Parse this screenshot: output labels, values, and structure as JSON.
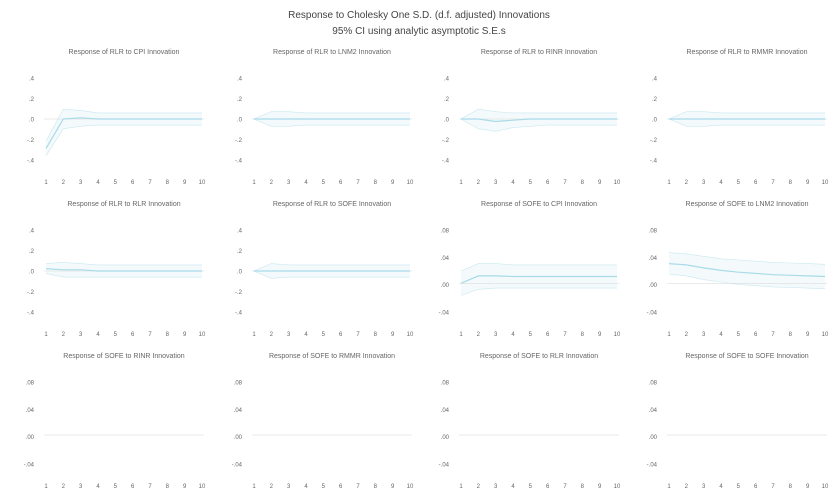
{
  "figure": {
    "title": "Response to Cholesky One S.D. (d.f. adjusted) Innovations",
    "subtitle": "95% CI using analytic asymptotic S.E.s"
  },
  "colors": {
    "line": "#a9dbe8",
    "band": "#f4fafc",
    "zero": "#d6d6d6",
    "text": "#666666"
  },
  "chart_data": [
    {
      "type": "line",
      "title": "Response of RLR to CPI Innovation",
      "x": [
        1,
        2,
        3,
        4,
        5,
        6,
        7,
        8,
        9,
        10
      ],
      "x_ticks": [
        "1",
        "2",
        "3",
        "4",
        "5",
        "6",
        "7",
        "8",
        "9",
        "10"
      ],
      "y_ticks": [
        ".4",
        ".2",
        ".0",
        "-.2",
        "-.4"
      ],
      "ylim": [
        -0.4,
        0.4
      ],
      "series": [
        {
          "values": [
            -0.24,
            0.0,
            0.01,
            0.0,
            0.0,
            0.0,
            0.0,
            0.0,
            0.0,
            0.0
          ]
        }
      ],
      "band_lower": [
        -0.3,
        -0.08,
        -0.06,
        -0.05,
        -0.05,
        -0.05,
        -0.05,
        -0.05,
        -0.05,
        -0.05
      ],
      "band_upper": [
        -0.18,
        0.08,
        0.07,
        0.05,
        0.05,
        0.05,
        0.05,
        0.05,
        0.05,
        0.05
      ]
    },
    {
      "type": "line",
      "title": "Response of RLR to LNM2 Innovation",
      "x": [
        1,
        2,
        3,
        4,
        5,
        6,
        7,
        8,
        9,
        10
      ],
      "x_ticks": [
        "1",
        "2",
        "3",
        "4",
        "5",
        "6",
        "7",
        "8",
        "9",
        "10"
      ],
      "y_ticks": [
        ".4",
        ".2",
        ".0",
        "-.2",
        "-.4"
      ],
      "ylim": [
        -0.4,
        0.4
      ],
      "series": [
        {
          "values": [
            0,
            0.0,
            0.0,
            0.0,
            0.0,
            0.0,
            0.0,
            0.0,
            0.0,
            0.0
          ]
        }
      ],
      "band_lower": [
        0,
        -0.06,
        -0.06,
        -0.05,
        -0.05,
        -0.05,
        -0.05,
        -0.05,
        -0.05,
        -0.05
      ],
      "band_upper": [
        0,
        0.06,
        0.06,
        0.05,
        0.05,
        0.05,
        0.05,
        0.05,
        0.05,
        0.05
      ]
    },
    {
      "type": "line",
      "title": "Response of RLR to RINR Innovation",
      "x": [
        1,
        2,
        3,
        4,
        5,
        6,
        7,
        8,
        9,
        10
      ],
      "x_ticks": [
        "1",
        "2",
        "3",
        "4",
        "5",
        "6",
        "7",
        "8",
        "9",
        "10"
      ],
      "y_ticks": [
        ".4",
        ".2",
        ".0",
        "-.2",
        "-.4"
      ],
      "ylim": [
        -0.4,
        0.4
      ],
      "series": [
        {
          "values": [
            0,
            0.0,
            -0.02,
            -0.01,
            0.0,
            0.0,
            0.0,
            0.0,
            0.0,
            0.0
          ]
        }
      ],
      "band_lower": [
        0,
        -0.08,
        -0.1,
        -0.07,
        -0.06,
        -0.05,
        -0.05,
        -0.05,
        -0.05,
        -0.05
      ],
      "band_upper": [
        0,
        0.08,
        0.06,
        0.05,
        0.05,
        0.05,
        0.05,
        0.05,
        0.05,
        0.05
      ]
    },
    {
      "type": "line",
      "title": "Response of RLR to RMMR Innovation",
      "x": [
        1,
        2,
        3,
        4,
        5,
        6,
        7,
        8,
        9,
        10
      ],
      "x_ticks": [
        "1",
        "2",
        "3",
        "4",
        "5",
        "6",
        "7",
        "8",
        "9",
        "10"
      ],
      "y_ticks": [
        ".4",
        ".2",
        ".0",
        "-.2",
        "-.4"
      ],
      "ylim": [
        -0.4,
        0.4
      ],
      "series": [
        {
          "values": [
            0,
            0.0,
            0.0,
            0.0,
            0.0,
            0.0,
            0.0,
            0.0,
            0.0,
            0.0
          ]
        }
      ],
      "band_lower": [
        0,
        -0.06,
        -0.06,
        -0.05,
        -0.05,
        -0.05,
        -0.05,
        -0.05,
        -0.05,
        -0.05
      ],
      "band_upper": [
        0,
        0.06,
        0.06,
        0.05,
        0.05,
        0.05,
        0.05,
        0.05,
        0.05,
        0.05
      ]
    },
    {
      "type": "line",
      "title": "Response of RLR to RLR Innovation",
      "x": [
        1,
        2,
        3,
        4,
        5,
        6,
        7,
        8,
        9,
        10
      ],
      "x_ticks": [
        "1",
        "2",
        "3",
        "4",
        "5",
        "6",
        "7",
        "8",
        "9",
        "10"
      ],
      "y_ticks": [
        ".4",
        ".2",
        ".0",
        "-.2",
        "-.4"
      ],
      "ylim": [
        -0.4,
        0.4
      ],
      "series": [
        {
          "values": [
            0.02,
            0.01,
            0.01,
            0.0,
            0.0,
            0.0,
            0.0,
            0.0,
            0.0,
            0.0
          ]
        }
      ],
      "band_lower": [
        -0.02,
        -0.05,
        -0.05,
        -0.05,
        -0.05,
        -0.05,
        -0.05,
        -0.05,
        -0.05,
        -0.05
      ],
      "band_upper": [
        0.06,
        0.07,
        0.06,
        0.05,
        0.05,
        0.05,
        0.05,
        0.05,
        0.05,
        0.05
      ]
    },
    {
      "type": "line",
      "title": "Response of RLR to SOFE Innovation",
      "x": [
        1,
        2,
        3,
        4,
        5,
        6,
        7,
        8,
        9,
        10
      ],
      "x_ticks": [
        "1",
        "2",
        "3",
        "4",
        "5",
        "6",
        "7",
        "8",
        "9",
        "10"
      ],
      "y_ticks": [
        ".4",
        ".2",
        ".0",
        "-.2",
        "-.4"
      ],
      "ylim": [
        -0.4,
        0.4
      ],
      "series": [
        {
          "values": [
            0,
            0.0,
            0.0,
            0.0,
            0.0,
            0.0,
            0.0,
            0.0,
            0.0,
            0.0
          ]
        }
      ],
      "band_lower": [
        0,
        -0.06,
        -0.05,
        -0.05,
        -0.05,
        -0.05,
        -0.05,
        -0.05,
        -0.05,
        -0.05
      ],
      "band_upper": [
        0,
        0.06,
        0.05,
        0.05,
        0.05,
        0.05,
        0.05,
        0.05,
        0.05,
        0.05
      ]
    },
    {
      "type": "line",
      "title": "Response of SOFE to CPI Innovation",
      "x": [
        1,
        2,
        3,
        4,
        5,
        6,
        7,
        8,
        9,
        10
      ],
      "x_ticks": [
        "1",
        "2",
        "3",
        "4",
        "5",
        "6",
        "7",
        "8",
        "9",
        "10"
      ],
      "y_ticks": [
        ".08",
        ".04",
        ".00",
        "-.04"
      ],
      "ylim": [
        -0.06,
        0.1
      ],
      "series": [
        {
          "values": [
            0.0,
            0.012,
            0.012,
            0.011,
            0.011,
            0.011,
            0.011,
            0.011,
            0.011,
            0.011
          ]
        }
      ],
      "band_lower": [
        -0.02,
        -0.01,
        -0.008,
        -0.008,
        -0.008,
        -0.008,
        -0.008,
        -0.008,
        -0.008,
        -0.008
      ],
      "band_upper": [
        0.02,
        0.032,
        0.032,
        0.03,
        0.03,
        0.03,
        0.03,
        0.03,
        0.03,
        0.03
      ]
    },
    {
      "type": "line",
      "title": "Response of SOFE to LNM2 Innovation",
      "x": [
        1,
        2,
        3,
        4,
        5,
        6,
        7,
        8,
        9,
        10
      ],
      "x_ticks": [
        "1",
        "2",
        "3",
        "4",
        "5",
        "6",
        "7",
        "8",
        "9",
        "10"
      ],
      "y_ticks": [
        ".08",
        ".04",
        ".00",
        "-.04"
      ],
      "ylim": [
        -0.06,
        0.1
      ],
      "series": [
        {
          "values": [
            0.032,
            0.03,
            0.025,
            0.021,
            0.018,
            0.016,
            0.014,
            0.013,
            0.012,
            0.011
          ]
        }
      ],
      "band_lower": [
        0.015,
        0.012,
        0.006,
        0.002,
        -0.002,
        -0.004,
        -0.006,
        -0.007,
        -0.008,
        -0.009
      ],
      "band_upper": [
        0.05,
        0.048,
        0.044,
        0.04,
        0.038,
        0.036,
        0.034,
        0.033,
        0.032,
        0.031
      ]
    }
  ],
  "partial_panels": [
    {
      "title": "Response of SOFE to RINR Innovation",
      "y_ticks": [
        ".08",
        ".04",
        ".00",
        "-.04"
      ],
      "x_ticks": [
        "1",
        "2",
        "3",
        "4",
        "5",
        "6",
        "7",
        "8",
        "9",
        "10"
      ]
    },
    {
      "title": "Response of SOFE to RMMR Innovation",
      "y_ticks": [
        ".08",
        ".04",
        ".00",
        "-.04"
      ],
      "x_ticks": [
        "1",
        "2",
        "3",
        "4",
        "5",
        "6",
        "7",
        "8",
        "9",
        "10"
      ]
    },
    {
      "title": "Response of SOFE to RLR Innovation",
      "y_ticks": [
        ".08",
        ".04",
        ".00",
        "-.04"
      ],
      "x_ticks": [
        "1",
        "2",
        "3",
        "4",
        "5",
        "6",
        "7",
        "8",
        "9",
        "10"
      ]
    },
    {
      "title": "Response of SOFE to SOFE Innovation",
      "y_ticks": [
        ".08",
        ".04",
        ".00",
        "-.04"
      ],
      "x_ticks": [
        "1",
        "2",
        "3",
        "4",
        "5",
        "6",
        "7",
        "8",
        "9",
        "10"
      ]
    }
  ]
}
